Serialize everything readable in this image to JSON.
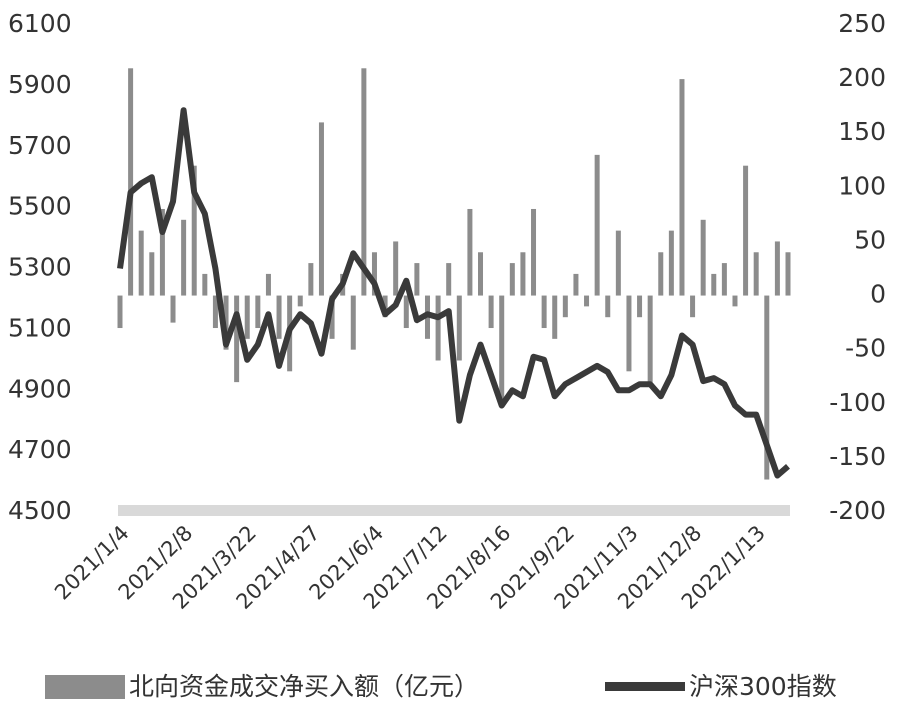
{
  "chart_data": {
    "type": "bar-line",
    "categories": [
      "2021/1/4",
      null,
      null,
      null,
      null,
      null,
      "2021/2/8",
      null,
      null,
      null,
      null,
      null,
      "2021/3/22",
      null,
      null,
      null,
      null,
      null,
      "2021/4/27",
      null,
      null,
      null,
      null,
      null,
      "2021/6/4",
      null,
      null,
      null,
      null,
      null,
      "2021/7/12",
      null,
      null,
      null,
      null,
      null,
      "2021/8/16",
      null,
      null,
      null,
      null,
      null,
      "2021/9/22",
      null,
      null,
      null,
      null,
      null,
      "2021/11/3",
      null,
      null,
      null,
      null,
      null,
      "2021/12/8",
      null,
      null,
      null,
      null,
      null,
      "2022/1/13",
      null,
      null,
      null
    ],
    "series": [
      {
        "name": "北向资金成交净买入额（亿元）",
        "type": "bar",
        "axis": "y2",
        "color": "#8c8c8c",
        "values": [
          -30,
          210,
          60,
          40,
          80,
          -25,
          70,
          120,
          20,
          -30,
          -50,
          -80,
          -40,
          -30,
          20,
          -40,
          -70,
          -10,
          30,
          160,
          -40,
          20,
          -50,
          210,
          40,
          -20,
          50,
          -30,
          30,
          -40,
          -60,
          30,
          -60,
          80,
          40,
          -30,
          -100,
          30,
          40,
          80,
          -30,
          -40,
          -20,
          20,
          -10,
          130,
          -20,
          60,
          -70,
          -20,
          -80,
          40,
          60,
          200,
          -20,
          70,
          20,
          30,
          -10,
          120,
          40,
          -170,
          50,
          40
        ]
      },
      {
        "name": "沪深300指数",
        "type": "line",
        "color": "#3a3a3a",
        "values": [
          5300,
          5550,
          5580,
          5600,
          5420,
          5520,
          5820,
          5550,
          5480,
          5300,
          5050,
          5150,
          5000,
          5050,
          5150,
          4980,
          5100,
          5150,
          5120,
          5020,
          5200,
          5250,
          5350,
          5300,
          5250,
          5150,
          5180,
          5260,
          5130,
          5150,
          5140,
          5160,
          4800,
          4950,
          5050,
          4950,
          4850,
          4900,
          4880,
          5010,
          5000,
          4880,
          4920,
          4940,
          4960,
          4980,
          4960,
          4900,
          4900,
          4920,
          4920,
          4880,
          4950,
          5080,
          5050,
          4930,
          4940,
          4920,
          4850,
          4820,
          4820,
          4720,
          4620,
          4650
        ]
      }
    ],
    "ylim": [
      4500,
      6100
    ],
    "yticks": [
      4500,
      4700,
      4900,
      5100,
      5300,
      5500,
      5700,
      5900,
      6100
    ],
    "y2lim": [
      -200,
      250
    ],
    "y2ticks": [
      -200,
      -150,
      -100,
      -50,
      0,
      50,
      100,
      150,
      200,
      250
    ],
    "legend": "bottom"
  }
}
